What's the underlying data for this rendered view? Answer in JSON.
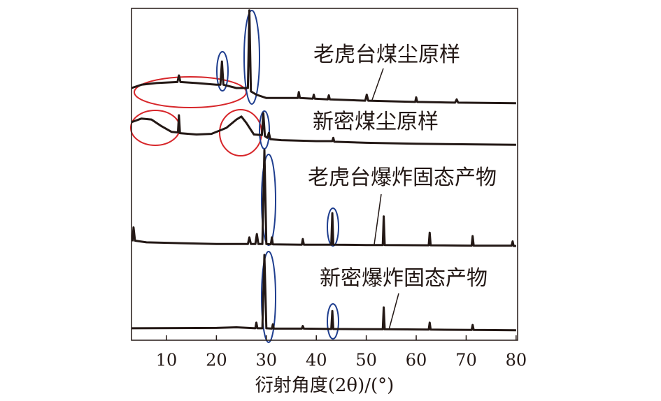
{
  "chart_data": {
    "type": "line",
    "xlabel": "衍射角度(2θ)/(°)",
    "xlim": [
      3,
      80.3
    ],
    "xticks": [
      10,
      20,
      30,
      40,
      50,
      60,
      70,
      80
    ],
    "ylim": [
      0,
      100
    ],
    "series": [
      {
        "name": "老虎台煤尘原样",
        "color": "#231815",
        "x": [
          3,
          5,
          8,
          12.2,
          12.5,
          12.8,
          16,
          20,
          20.8,
          21.1,
          21.4,
          24,
          26.3,
          26.6,
          26.9,
          28,
          30,
          36.3,
          36.5,
          36.7,
          39.3,
          39.5,
          39.7,
          42.3,
          42.5,
          42.7,
          49.8,
          50.1,
          50.4,
          55,
          59.8,
          60,
          60.2,
          67.8,
          68.1,
          68.4,
          80
        ],
        "values": [
          76,
          77,
          77.5,
          77.8,
          79.8,
          77.8,
          77.5,
          77,
          77,
          84,
          77,
          76,
          76,
          99.4,
          75,
          74,
          73,
          73,
          74.8,
          73,
          72.8,
          74,
          72.8,
          72.6,
          73.8,
          72.6,
          72.2,
          74,
          72.2,
          72,
          71.8,
          73.2,
          71.8,
          71.6,
          72.6,
          71.6,
          71.4
        ]
      },
      {
        "name": "新密煤尘原样",
        "color": "#231815",
        "x": [
          3,
          5,
          7,
          9,
          11,
          12.3,
          12.5,
          12.7,
          16,
          19,
          22,
          24,
          25,
          26,
          27.5,
          29.1,
          29.4,
          29.7,
          30.2,
          30.5,
          30.8,
          33,
          40,
          43.2,
          43.4,
          43.6,
          50,
          60,
          80
        ],
        "values": [
          65.7,
          66.8,
          66.5,
          64.5,
          62.8,
          62.6,
          67.8,
          62.4,
          62,
          62.2,
          64,
          66.5,
          67.4,
          65.5,
          62,
          61.8,
          68.4,
          61.5,
          61,
          62.5,
          60.6,
          60.3,
          60,
          60,
          61,
          59.8,
          59.5,
          59.2,
          58.9
        ]
      },
      {
        "name": "老虎台爆炸固态产物",
        "color": "#231815",
        "x": [
          3.2,
          3.4,
          3.7,
          6,
          20,
          26.3,
          26.6,
          26.9,
          27.8,
          28.1,
          28.4,
          29.2,
          29.6,
          30,
          30.9,
          31.1,
          31.3,
          37.1,
          37.3,
          37.5,
          43,
          43.2,
          43.4,
          50,
          53.3,
          53.5,
          53.7,
          62.5,
          62.7,
          62.9,
          71.1,
          71.3,
          71.5,
          79.1,
          79.3,
          79.5,
          80
        ],
        "values": [
          29.8,
          34,
          30,
          29.5,
          29,
          29,
          31,
          29,
          29,
          32,
          29,
          29,
          57.3,
          29,
          28.9,
          31,
          28.9,
          28.8,
          30.5,
          28.8,
          28.8,
          38.3,
          28.8,
          28.7,
          28.7,
          37.3,
          28.7,
          28.6,
          32.4,
          28.6,
          28.5,
          31.4,
          28.5,
          28.5,
          29.8,
          28.4,
          28.4
        ]
      },
      {
        "name": "新密爆炸固态产物",
        "color": "#231815",
        "x": [
          3,
          20,
          24,
          27.8,
          28,
          28.2,
          29.2,
          29.6,
          30,
          31.1,
          31.3,
          31.5,
          37.1,
          37.3,
          37.5,
          43,
          43.2,
          43.4,
          53.3,
          53.5,
          53.7,
          62.5,
          62.7,
          62.9,
          71.1,
          71.3,
          71.5,
          80
        ],
        "values": [
          3.6,
          3.7,
          3.9,
          3.6,
          5.3,
          3.6,
          3.6,
          25.7,
          3.6,
          3.5,
          4.8,
          3.5,
          3.5,
          4.3,
          3.5,
          3.4,
          8.8,
          3.4,
          3.3,
          9.9,
          3.3,
          3.2,
          5.3,
          3.2,
          3.1,
          4.6,
          3.1,
          3
        ]
      }
    ]
  }
}
